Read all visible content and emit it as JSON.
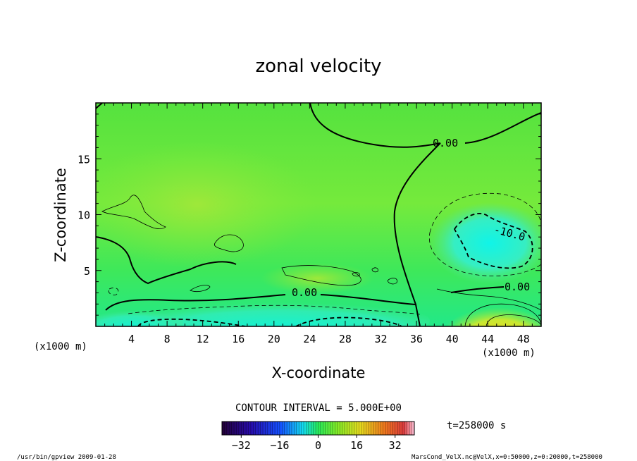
{
  "chart_data": {
    "type": "heatmap",
    "title": "zonal velocity",
    "xlabel": "X-coordinate",
    "ylabel": "Z-coordinate",
    "x_unit": "(x1000 m)",
    "z_unit": "(x1000 m)",
    "xlim": [
      0,
      50
    ],
    "ylim": [
      0,
      20
    ],
    "x_ticks": [
      "4",
      "8",
      "12",
      "16",
      "20",
      "24",
      "28",
      "32",
      "36",
      "40",
      "44",
      "48"
    ],
    "y_ticks": [
      "5",
      "10",
      "15"
    ],
    "contour_interval_label": "CONTOUR INTERVAL = 5.000E+00",
    "contour_labels": [
      "0.00",
      "0.00",
      "0.00",
      "-10.0"
    ],
    "colorbar": {
      "range": [
        -40,
        40
      ],
      "ticks": [
        "-32",
        "-16",
        "0",
        "16",
        "32"
      ]
    },
    "time_label": "t=258000 s"
  },
  "footer": {
    "left": "/usr/bin/gpview  2009-01-28",
    "right": "MarsCond_VelX.nc@VelX,x=0:50000,z=0:20000,t=258000"
  }
}
